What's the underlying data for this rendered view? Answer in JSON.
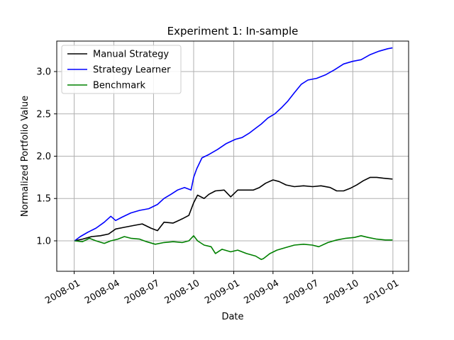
{
  "chart_data": {
    "type": "line",
    "title": "Experiment 1: In-sample",
    "xlabel": "Date",
    "ylabel": "Normalized Portfolio Value",
    "xlim": [
      "2007-11-22",
      "2010-02-06"
    ],
    "ylim": [
      0.64,
      3.36
    ],
    "x_ticks": [
      "2008-01",
      "2008-04",
      "2008-07",
      "2008-10",
      "2009-01",
      "2009-04",
      "2009-07",
      "2009-10",
      "2010-01"
    ],
    "y_ticks": [
      "1.0",
      "1.5",
      "2.0",
      "2.5",
      "3.0"
    ],
    "grid": true,
    "legend_position": "top-left",
    "series": [
      {
        "name": "Manual Strategy",
        "color": "#000000",
        "points": [
          [
            "2008-01-02",
            1.0
          ],
          [
            "2008-01-20",
            1.02
          ],
          [
            "2008-02-10",
            1.05
          ],
          [
            "2008-03-01",
            1.06
          ],
          [
            "2008-03-20",
            1.08
          ],
          [
            "2008-04-05",
            1.14
          ],
          [
            "2008-04-25",
            1.16
          ],
          [
            "2008-05-15",
            1.18
          ],
          [
            "2008-06-05",
            1.2
          ],
          [
            "2008-06-25",
            1.15
          ],
          [
            "2008-07-10",
            1.12
          ],
          [
            "2008-07-25",
            1.22
          ],
          [
            "2008-08-15",
            1.21
          ],
          [
            "2008-09-05",
            1.26
          ],
          [
            "2008-09-20",
            1.3
          ],
          [
            "2008-10-01",
            1.45
          ],
          [
            "2008-10-10",
            1.54
          ],
          [
            "2008-10-25",
            1.5
          ],
          [
            "2008-11-05",
            1.55
          ],
          [
            "2008-11-20",
            1.59
          ],
          [
            "2008-12-10",
            1.6
          ],
          [
            "2008-12-25",
            1.52
          ],
          [
            "2009-01-10",
            1.6
          ],
          [
            "2009-01-25",
            1.6
          ],
          [
            "2009-02-15",
            1.6
          ],
          [
            "2009-03-01",
            1.63
          ],
          [
            "2009-03-15",
            1.68
          ],
          [
            "2009-04-01",
            1.72
          ],
          [
            "2009-04-15",
            1.7
          ],
          [
            "2009-05-01",
            1.66
          ],
          [
            "2009-05-20",
            1.64
          ],
          [
            "2009-06-10",
            1.65
          ],
          [
            "2009-07-01",
            1.64
          ],
          [
            "2009-07-20",
            1.65
          ],
          [
            "2009-08-10",
            1.63
          ],
          [
            "2009-08-25",
            1.59
          ],
          [
            "2009-09-10",
            1.59
          ],
          [
            "2009-09-25",
            1.62
          ],
          [
            "2009-10-10",
            1.66
          ],
          [
            "2009-10-25",
            1.71
          ],
          [
            "2009-11-10",
            1.75
          ],
          [
            "2009-11-25",
            1.75
          ],
          [
            "2009-12-10",
            1.74
          ],
          [
            "2009-12-31",
            1.73
          ]
        ]
      },
      {
        "name": "Strategy Learner",
        "color": "#0000ff",
        "points": [
          [
            "2008-01-02",
            1.0
          ],
          [
            "2008-01-15",
            1.05
          ],
          [
            "2008-02-01",
            1.1
          ],
          [
            "2008-02-20",
            1.15
          ],
          [
            "2008-03-10",
            1.22
          ],
          [
            "2008-03-25",
            1.29
          ],
          [
            "2008-04-05",
            1.24
          ],
          [
            "2008-04-20",
            1.28
          ],
          [
            "2008-05-10",
            1.33
          ],
          [
            "2008-05-30",
            1.36
          ],
          [
            "2008-06-20",
            1.38
          ],
          [
            "2008-07-10",
            1.43
          ],
          [
            "2008-07-25",
            1.5
          ],
          [
            "2008-08-10",
            1.55
          ],
          [
            "2008-08-25",
            1.6
          ],
          [
            "2008-09-10",
            1.63
          ],
          [
            "2008-09-25",
            1.6
          ],
          [
            "2008-10-01",
            1.75
          ],
          [
            "2008-10-08",
            1.85
          ],
          [
            "2008-10-20",
            1.98
          ],
          [
            "2008-11-05",
            2.02
          ],
          [
            "2008-11-25",
            2.08
          ],
          [
            "2008-12-15",
            2.15
          ],
          [
            "2009-01-05",
            2.2
          ],
          [
            "2009-01-20",
            2.22
          ],
          [
            "2009-02-05",
            2.27
          ],
          [
            "2009-02-20",
            2.33
          ],
          [
            "2009-03-05",
            2.38
          ],
          [
            "2009-03-20",
            2.45
          ],
          [
            "2009-04-05",
            2.5
          ],
          [
            "2009-04-20",
            2.57
          ],
          [
            "2009-05-05",
            2.65
          ],
          [
            "2009-05-20",
            2.75
          ],
          [
            "2009-06-05",
            2.85
          ],
          [
            "2009-06-20",
            2.9
          ],
          [
            "2009-07-10",
            2.92
          ],
          [
            "2009-07-30",
            2.96
          ],
          [
            "2009-08-20",
            3.02
          ],
          [
            "2009-09-10",
            3.09
          ],
          [
            "2009-09-30",
            3.12
          ],
          [
            "2009-10-20",
            3.14
          ],
          [
            "2009-11-10",
            3.2
          ],
          [
            "2009-11-30",
            3.24
          ],
          [
            "2009-12-20",
            3.27
          ],
          [
            "2009-12-31",
            3.28
          ]
        ]
      },
      {
        "name": "Benchmark",
        "color": "#008000",
        "points": [
          [
            "2008-01-02",
            1.0
          ],
          [
            "2008-01-20",
            0.99
          ],
          [
            "2008-02-05",
            1.03
          ],
          [
            "2008-02-20",
            1.0
          ],
          [
            "2008-03-10",
            0.97
          ],
          [
            "2008-03-25",
            1.0
          ],
          [
            "2008-04-10",
            1.02
          ],
          [
            "2008-04-25",
            1.05
          ],
          [
            "2008-05-10",
            1.03
          ],
          [
            "2008-05-30",
            1.02
          ],
          [
            "2008-06-15",
            0.99
          ],
          [
            "2008-07-05",
            0.96
          ],
          [
            "2008-07-25",
            0.98
          ],
          [
            "2008-08-15",
            0.99
          ],
          [
            "2008-09-05",
            0.98
          ],
          [
            "2008-09-20",
            1.0
          ],
          [
            "2008-10-01",
            1.06
          ],
          [
            "2008-10-10",
            1.0
          ],
          [
            "2008-10-25",
            0.95
          ],
          [
            "2008-11-10",
            0.93
          ],
          [
            "2008-11-20",
            0.85
          ],
          [
            "2008-12-05",
            0.9
          ],
          [
            "2008-12-25",
            0.87
          ],
          [
            "2009-01-10",
            0.89
          ],
          [
            "2009-01-30",
            0.85
          ],
          [
            "2009-02-20",
            0.82
          ],
          [
            "2009-03-05",
            0.78
          ],
          [
            "2009-03-10",
            0.79
          ],
          [
            "2009-03-25",
            0.85
          ],
          [
            "2009-04-10",
            0.89
          ],
          [
            "2009-04-30",
            0.92
          ],
          [
            "2009-05-20",
            0.95
          ],
          [
            "2009-06-10",
            0.96
          ],
          [
            "2009-06-30",
            0.95
          ],
          [
            "2009-07-15",
            0.93
          ],
          [
            "2009-08-05",
            0.98
          ],
          [
            "2009-08-25",
            1.01
          ],
          [
            "2009-09-15",
            1.03
          ],
          [
            "2009-10-05",
            1.04
          ],
          [
            "2009-10-20",
            1.06
          ],
          [
            "2009-11-05",
            1.04
          ],
          [
            "2009-11-25",
            1.02
          ],
          [
            "2009-12-15",
            1.01
          ],
          [
            "2009-12-31",
            1.01
          ]
        ]
      }
    ]
  }
}
